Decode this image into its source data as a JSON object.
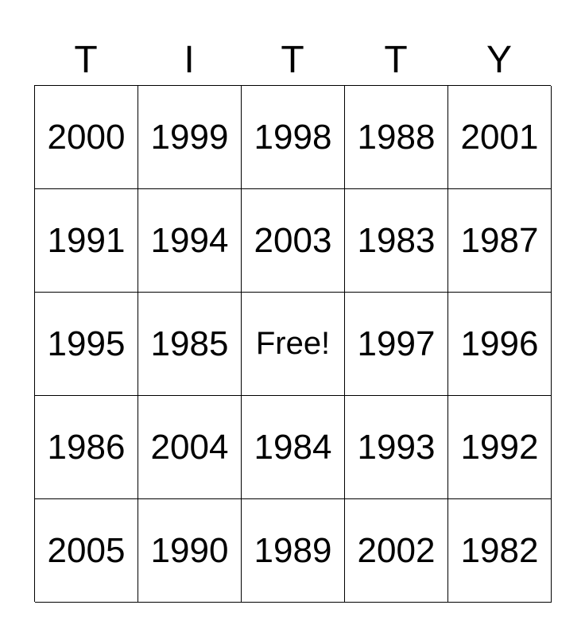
{
  "header": [
    "T",
    "I",
    "T",
    "T",
    "Y"
  ],
  "cells": [
    [
      "2000",
      "1999",
      "1998",
      "1988",
      "2001"
    ],
    [
      "1991",
      "1994",
      "2003",
      "1983",
      "1987"
    ],
    [
      "1995",
      "1985",
      "Free!",
      "1997",
      "1996"
    ],
    [
      "1986",
      "2004",
      "1984",
      "1993",
      "1992"
    ],
    [
      "2005",
      "1990",
      "1989",
      "2002",
      "1982"
    ]
  ]
}
